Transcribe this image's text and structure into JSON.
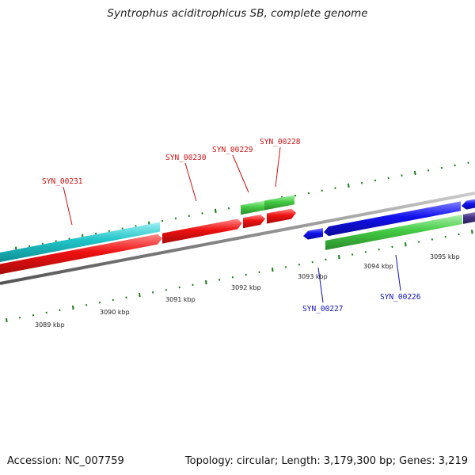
{
  "title": "Syntrophus aciditrophicus SB, complete genome",
  "footer": {
    "accession": "Accession: NC_007759",
    "summary": "Topology: circular; Length: 3,179,300 bp; Genes: 3,219"
  },
  "ticks": {
    "labels": [
      "3089 kbp",
      "3090 kbp",
      "3091 kbp",
      "3092 kbp",
      "3093 kbp",
      "3094 kbp",
      "3095 kbp"
    ]
  },
  "gene_labels": {
    "top": [
      "SYN_00231",
      "SYN_00230",
      "SYN_00229",
      "SYN_00228"
    ],
    "bottom": [
      "SYN_00227",
      "SYN_00226"
    ]
  },
  "colors": {
    "forward_label": "#cc1111",
    "reverse_label": "#1111bb",
    "cyan": "#20c4c8",
    "red": "#ee1111",
    "green": "#44cc44",
    "blue": "#1111ee",
    "purple": "#443388",
    "backbone": "#888888",
    "tick": "#1a7a1a"
  }
}
